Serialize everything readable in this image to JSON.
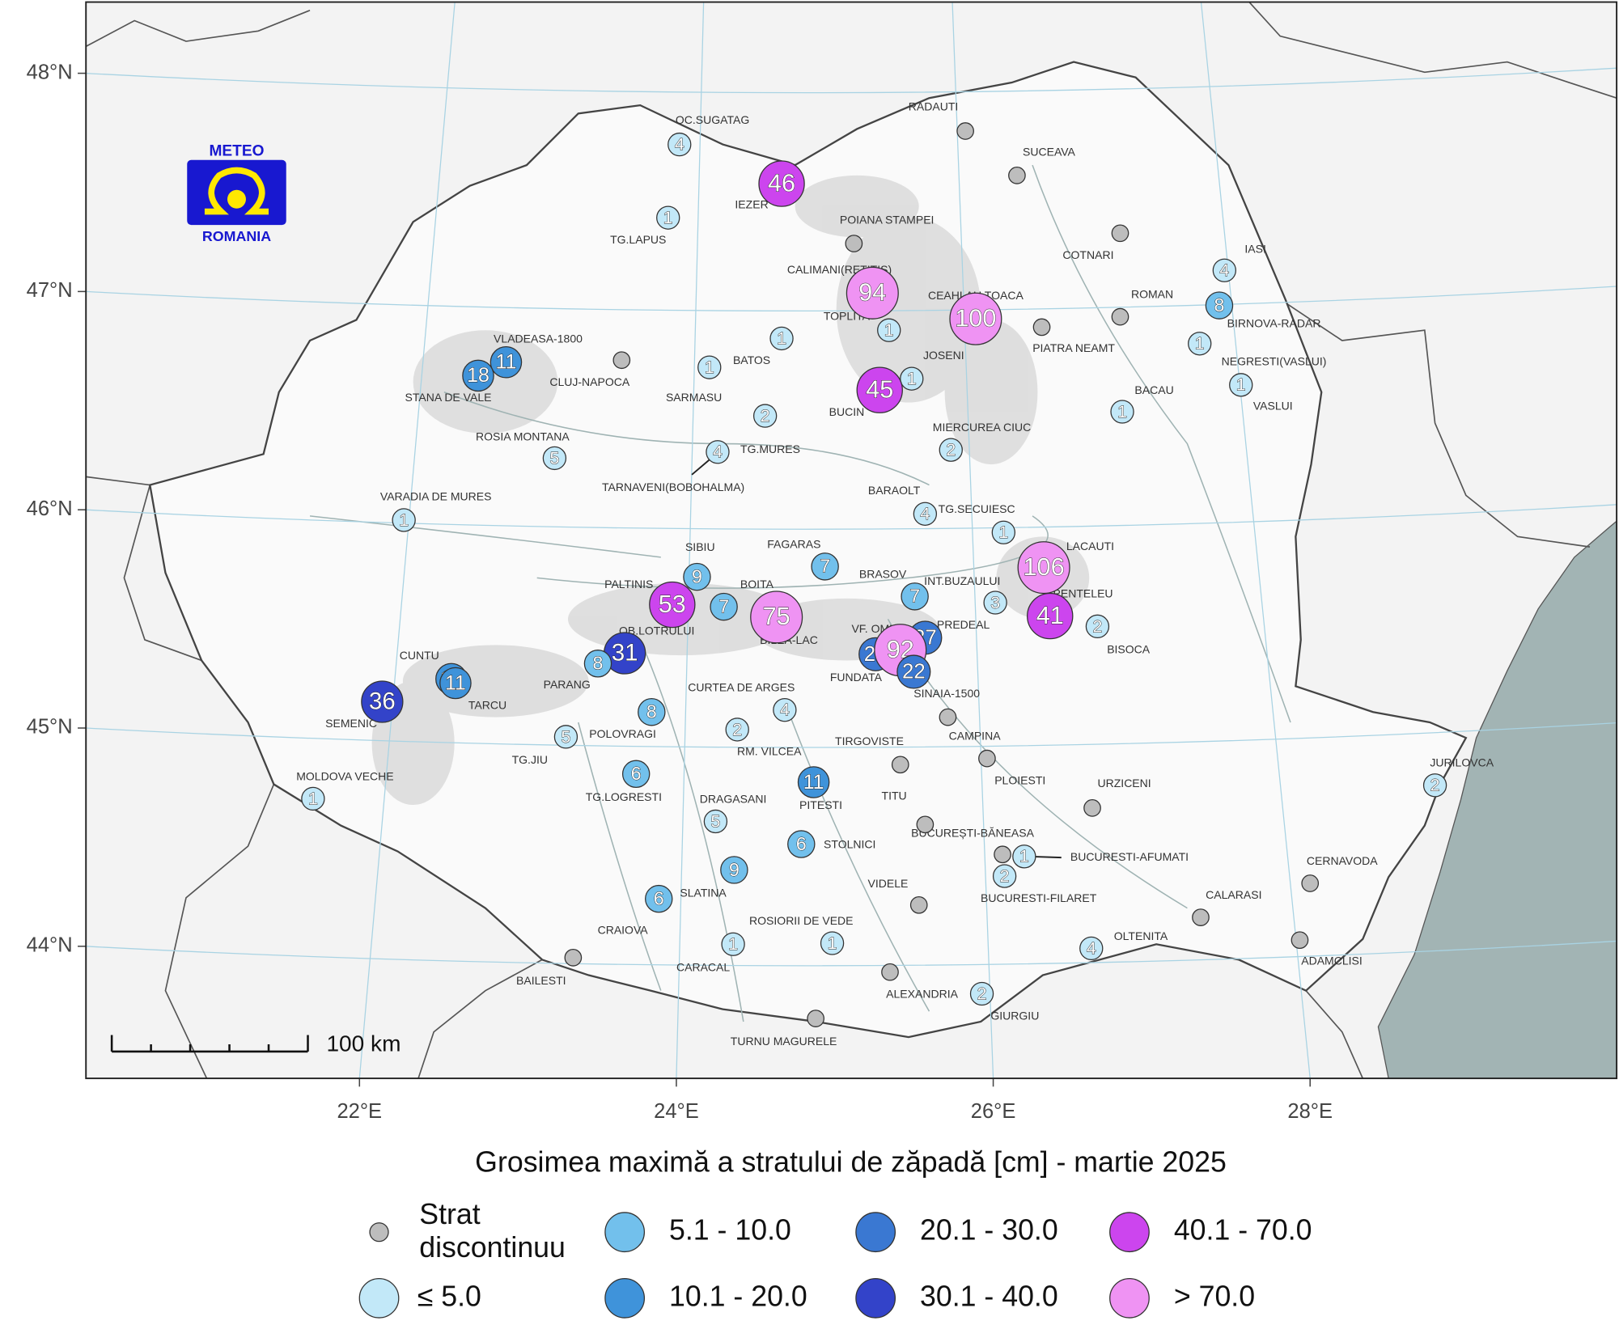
{
  "title": "Grosimea maximă a stratului de zăpadă [cm] - martie 2025",
  "logo": {
    "top": "METEO",
    "bottom": "ROMANIA"
  },
  "scale_bar": "100 km",
  "lat_ticks": [
    {
      "value": 48,
      "label": "48°N"
    },
    {
      "value": 47,
      "label": "47°N"
    },
    {
      "value": 46,
      "label": "46°N"
    },
    {
      "value": 45,
      "label": "45°N"
    },
    {
      "value": 44,
      "label": "44°N"
    }
  ],
  "lon_ticks": [
    {
      "value": 22,
      "label": "22°E"
    },
    {
      "value": 24,
      "label": "24°E"
    },
    {
      "value": 26,
      "label": "26°E"
    },
    {
      "value": 28,
      "label": "28°E"
    }
  ],
  "annotations": [
    "TARNAVENI(BOBOHALMA)"
  ],
  "legend": [
    {
      "label": "Strat discontinuu",
      "color": "#bdbdbd"
    },
    {
      "label": "≤ 5.0",
      "color": "#c2e8f8",
      "max": 5.0
    },
    {
      "label": "5.1 - 10.0",
      "color": "#72c0ec",
      "min": 5.1,
      "max": 10.0
    },
    {
      "label": "10.1 - 20.0",
      "color": "#3f93da",
      "min": 10.1,
      "max": 20.0
    },
    {
      "label": "20.1 - 30.0",
      "color": "#3a78d2",
      "min": 20.1,
      "max": 30.0
    },
    {
      "label": "30.1 - 40.0",
      "color": "#3343c9",
      "min": 30.1,
      "max": 40.0
    },
    {
      "label": "40.1 - 70.0",
      "color": "#cc45ee",
      "min": 40.1,
      "max": 70.0
    },
    {
      "label": "> 70.0",
      "color": "#ef93f3",
      "min": 70.0
    }
  ],
  "stations": [
    {
      "name": "OC.SUGATAG",
      "value": 4
    },
    {
      "name": "RADAUTI",
      "value": null
    },
    {
      "name": "SUCEAVA",
      "value": null
    },
    {
      "name": "IEZER",
      "value": 46
    },
    {
      "name": "TG.LAPUS",
      "value": 1
    },
    {
      "name": "POIANA STAMPEI",
      "value": null
    },
    {
      "name": "COTNARI",
      "value": null
    },
    {
      "name": "IASI",
      "value": 4
    },
    {
      "name": "CALIMANI(RETITIS)",
      "value": 94
    },
    {
      "name": "CEAHLAU TOACA",
      "value": 100
    },
    {
      "name": "ROMAN",
      "value": null
    },
    {
      "name": "BIRNOVA-RADAR",
      "value": 8
    },
    {
      "name": "TOPLITA",
      "value": 1
    },
    {
      "name": "PIATRA NEAMT",
      "value": null
    },
    {
      "name": "VLADEASA-1800",
      "value": 11
    },
    {
      "name": "STANA DE VALE",
      "value": 18
    },
    {
      "name": "CLUJ-NAPOCA",
      "value": null
    },
    {
      "name": null,
      "value": 1
    },
    {
      "name": "BATOS",
      "value": 1
    },
    {
      "name": "JOSENI",
      "value": 1
    },
    {
      "name": "NEGRESTI(VASLUI)",
      "value": 1
    },
    {
      "name": "SARMASU",
      "value": 2
    },
    {
      "name": "BUCIN",
      "value": 45
    },
    {
      "name": "BACAU",
      "value": 1
    },
    {
      "name": "VASLUI",
      "value": 1
    },
    {
      "name": "ROSIA MONTANA",
      "value": 5
    },
    {
      "name": "TG.MURES",
      "value": 4
    },
    {
      "name": "MIERCUREA CIUC",
      "value": 2
    },
    {
      "name": "VARADIA DE MURES",
      "value": 1
    },
    {
      "name": "BARAOLT",
      "value": 4
    },
    {
      "name": "TG.SECUIESC",
      "value": 1
    },
    {
      "name": "LACAUTI",
      "value": 106
    },
    {
      "name": "SIBIU",
      "value": 9
    },
    {
      "name": "FAGARAS",
      "value": 7
    },
    {
      "name": "BRASOV",
      "value": 7
    },
    {
      "name": "INT.BUZAULUI",
      "value": 3
    },
    {
      "name": "PALTINIS",
      "value": 53
    },
    {
      "name": "BOITA",
      "value": 7
    },
    {
      "name": "BILEA-LAC",
      "value": 75
    },
    {
      "name": "PENTELEU",
      "value": 41
    },
    {
      "name": "PREDEAL",
      "value": 27
    },
    {
      "name": "BISOCA",
      "value": 2
    },
    {
      "name": "OB.LOTRULUI",
      "value": 31
    },
    {
      "name": "FUNDATA",
      "value": 22
    },
    {
      "name": "VF. OMU",
      "value": 92
    },
    {
      "name": "SINAIA-1500",
      "value": 22
    },
    {
      "name": "CUNTU",
      "value": 13
    },
    {
      "name": "TARCU",
      "value": 11
    },
    {
      "name": "PARANG",
      "value": 8
    },
    {
      "name": "SEMENIC",
      "value": 36
    },
    {
      "name": "CURTEA DE ARGES",
      "value": 4
    },
    {
      "name": "POLOVRAGI",
      "value": 8
    },
    {
      "name": "TG.JIU",
      "value": 5
    },
    {
      "name": "RM. VILCEA",
      "value": 2
    },
    {
      "name": "TIRGOVISTE",
      "value": null
    },
    {
      "name": "CAMPINA",
      "value": null
    },
    {
      "name": "PLOIESTI",
      "value": null
    },
    {
      "name": "MOLDOVA VECHE",
      "value": 1
    },
    {
      "name": "TG.LOGRESTI",
      "value": 6
    },
    {
      "name": "PITESTI",
      "value": 11
    },
    {
      "name": "URZICENI",
      "value": null
    },
    {
      "name": "TITU",
      "value": null
    },
    {
      "name": "JURILOVCA",
      "value": 2
    },
    {
      "name": "DRAGASANI",
      "value": 5
    },
    {
      "name": "BUCUREȘTI-BĂNEASA",
      "value": null
    },
    {
      "name": "BUCURESTI-AFUMATI",
      "value": 1
    },
    {
      "name": "STOLNICI",
      "value": 6
    },
    {
      "name": "SLATINA",
      "value": 9
    },
    {
      "name": "BUCURESTI-FILARET",
      "value": 2
    },
    {
      "name": "VIDELE",
      "value": null
    },
    {
      "name": "CERNAVODA",
      "value": null
    },
    {
      "name": "CRAIOVA",
      "value": 6
    },
    {
      "name": "CALARASI",
      "value": null
    },
    {
      "name": "CARACAL",
      "value": 1
    },
    {
      "name": "ROSIORII DE VEDE",
      "value": 1
    },
    {
      "name": "OLTENITA",
      "value": 4
    },
    {
      "name": "ADAMCLISI",
      "value": null
    },
    {
      "name": "BAILESTI",
      "value": null
    },
    {
      "name": "ALEXANDRIA",
      "value": null
    },
    {
      "name": "GIURGIU",
      "value": 2
    },
    {
      "name": "TURNU MAGURELE",
      "value": null
    }
  ]
}
